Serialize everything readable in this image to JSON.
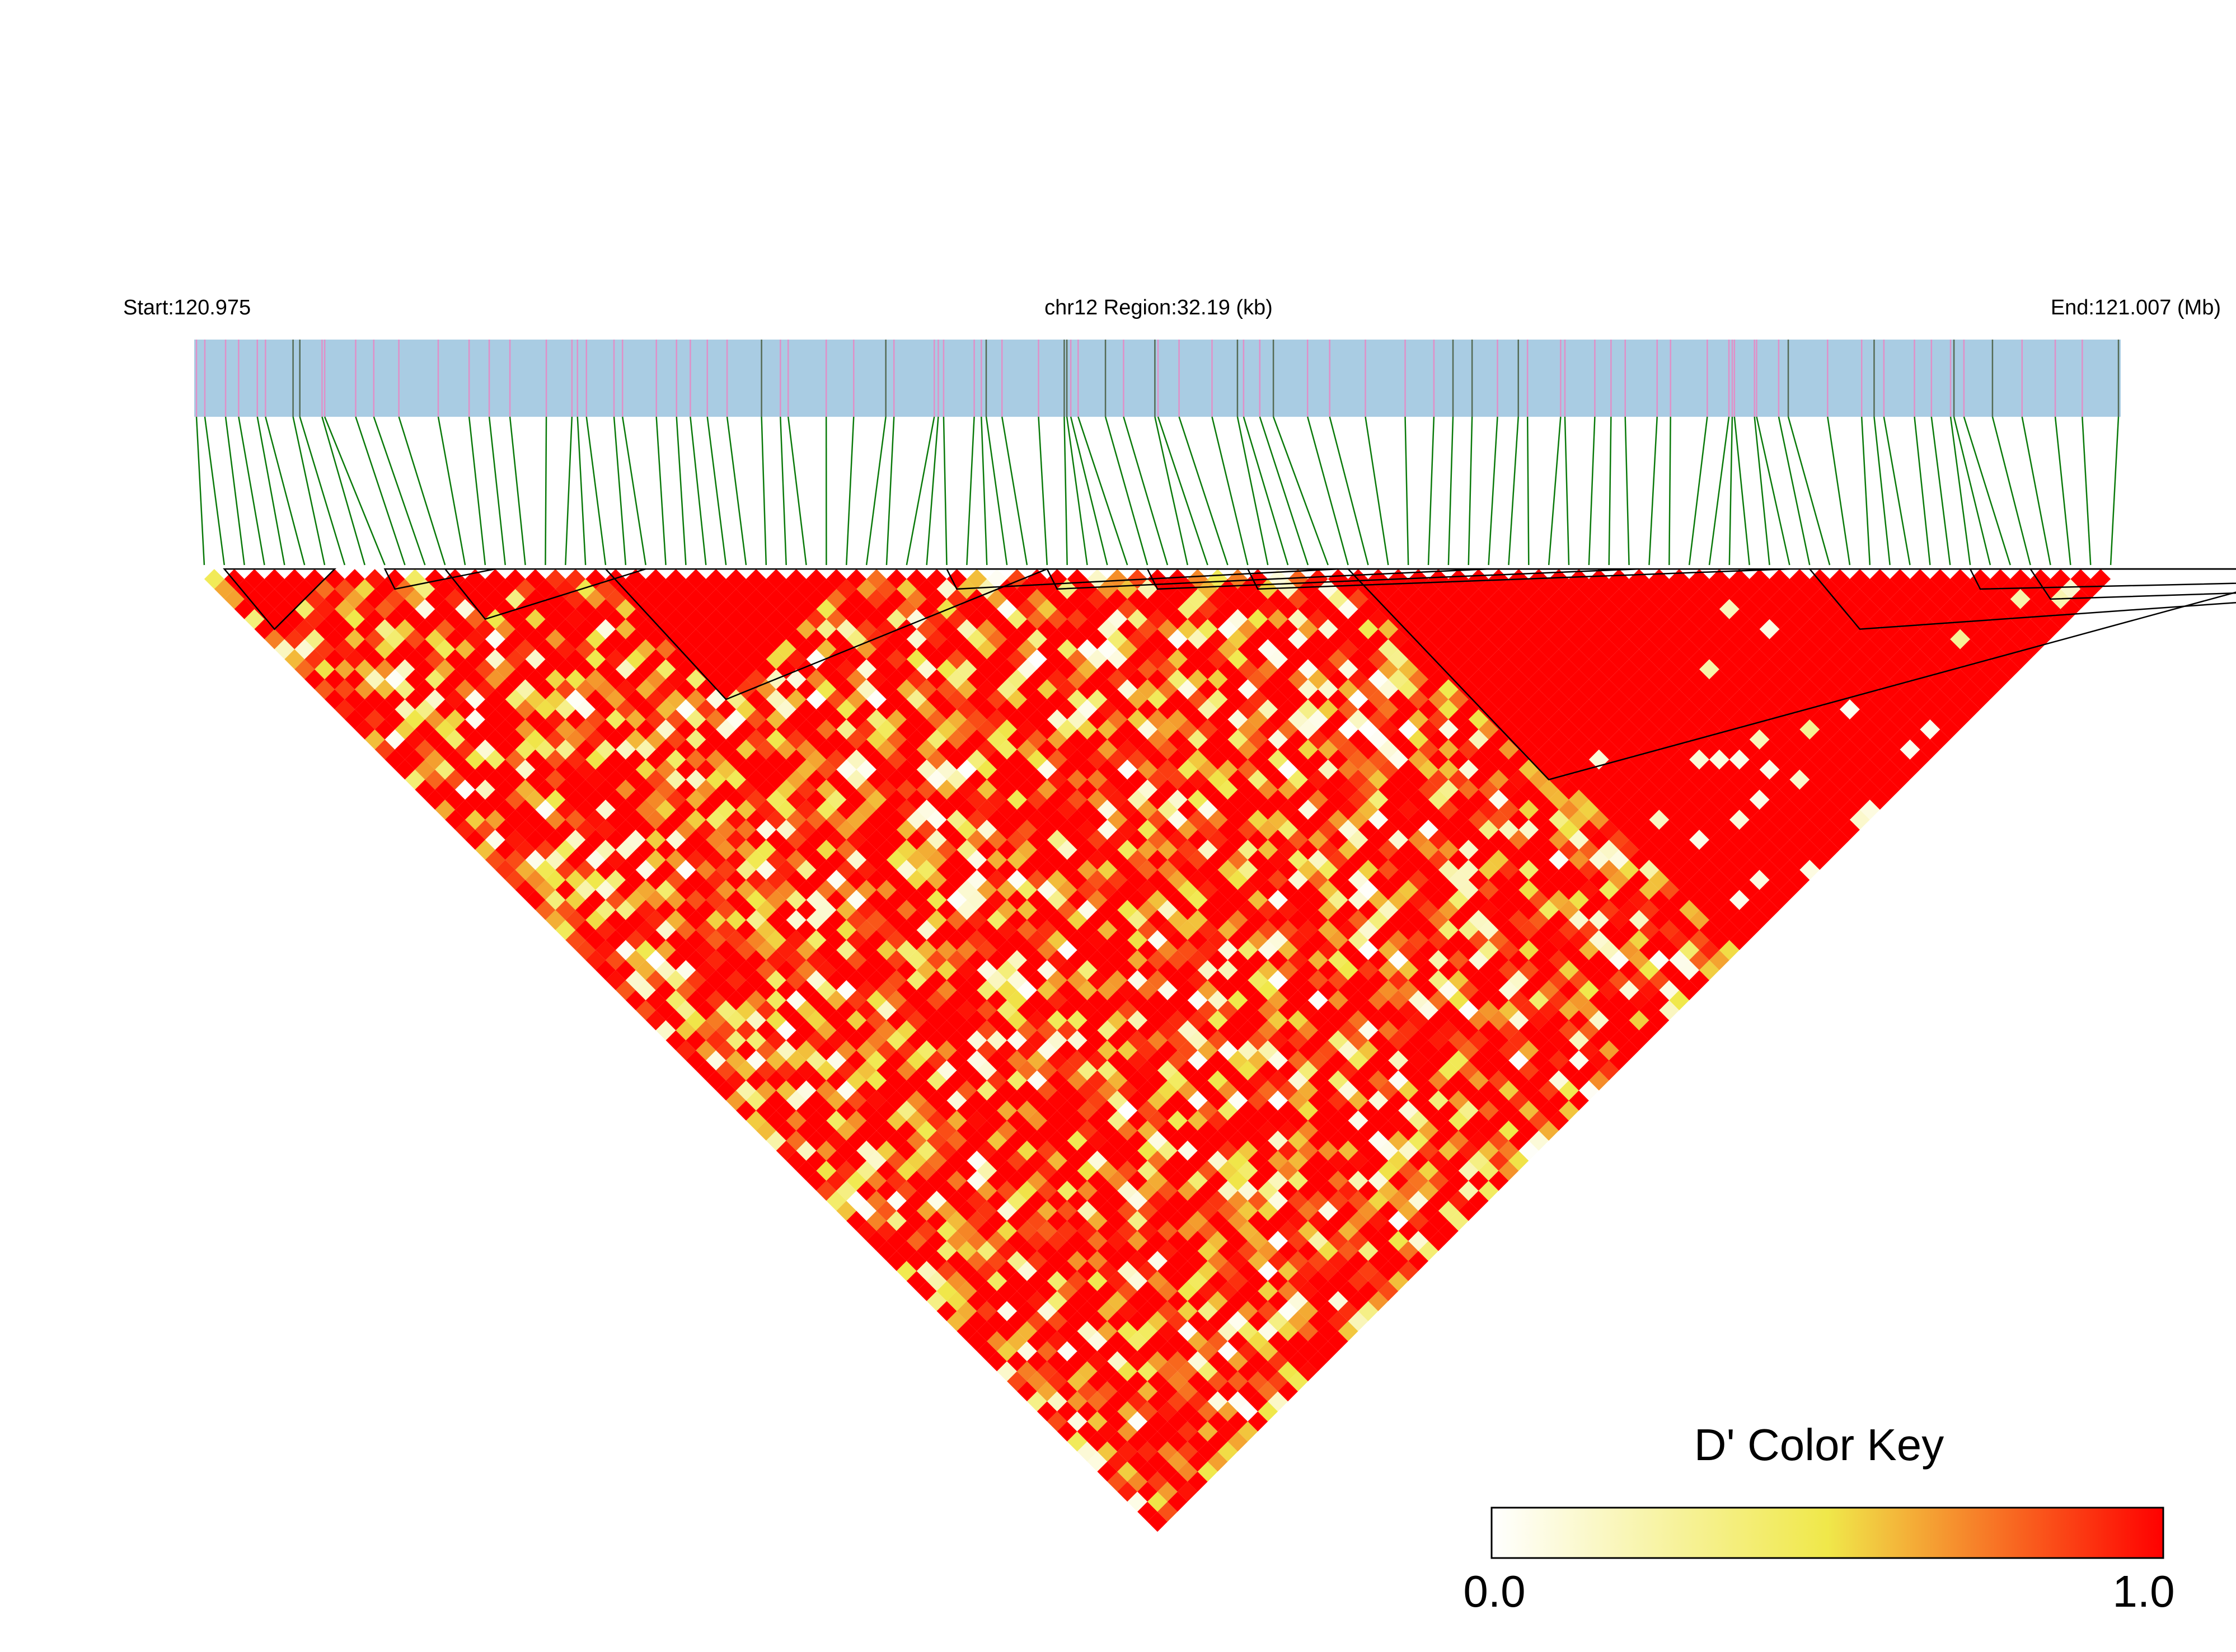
{
  "header": {
    "start_label": "Start:120.975",
    "region_label": "chr12 Region:32.19 (kb)",
    "end_label": "End:121.007 (Mb)"
  },
  "legend": {
    "title": "D' Color Key",
    "min_label": "0.0",
    "max_label": "1.0",
    "gradient_colors": [
      "#ffffff",
      "#f0e84a",
      "#ff0000"
    ]
  },
  "chart_data": {
    "type": "heatmap",
    "subtype": "LD triangle (pairwise D')",
    "chromosome": "chr12",
    "region_kb": 32.19,
    "start_mb": 120.975,
    "end_mb": 121.007,
    "value_range": [
      0.0,
      1.0
    ],
    "snp_count": 96,
    "dominant_value": 1.0,
    "haplotype_blocks_snp_index": [
      [
        1,
        6
      ],
      [
        9,
        10
      ],
      [
        12,
        16
      ],
      [
        20,
        32
      ],
      [
        37,
        38
      ],
      [
        42,
        43
      ],
      [
        47,
        48
      ],
      [
        52,
        53
      ],
      [
        57,
        77
      ],
      [
        80,
        85
      ],
      [
        88,
        89
      ],
      [
        91,
        93
      ]
    ],
    "colors": {
      "track_fill": "#a9cce3",
      "snp_minor_line": "#e090c8",
      "snp_major_line": "#556b55",
      "connector_line": "#0a7a0a",
      "block_outline": "#000000"
    }
  }
}
